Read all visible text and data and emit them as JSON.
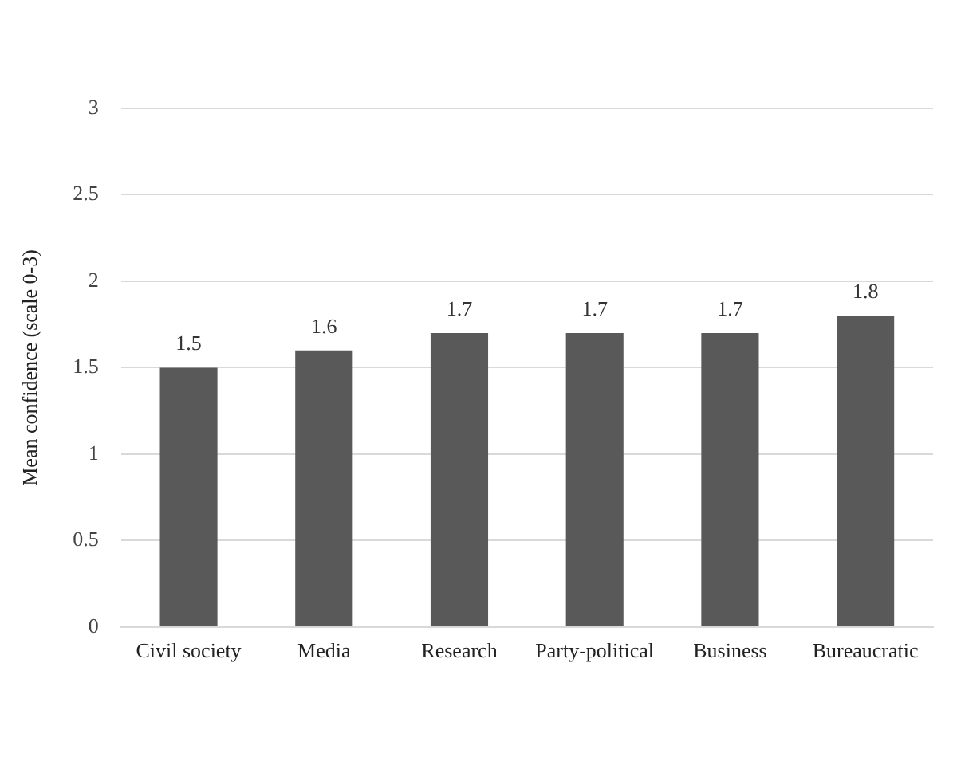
{
  "chart_data": {
    "type": "bar",
    "ylabel": "Mean confidence (scale 0-3)",
    "categories": [
      "Civil society",
      "Media",
      "Research",
      "Party-political",
      "Business",
      "Bureaucratic"
    ],
    "values": [
      1.5,
      1.6,
      1.7,
      1.7,
      1.7,
      1.8
    ],
    "color": "#595959",
    "ylim": [
      0,
      3
    ],
    "yticks": [
      0,
      0.5,
      1,
      1.5,
      2,
      2.5,
      3
    ],
    "grid": "y",
    "data_labels": true,
    "legend": false
  }
}
